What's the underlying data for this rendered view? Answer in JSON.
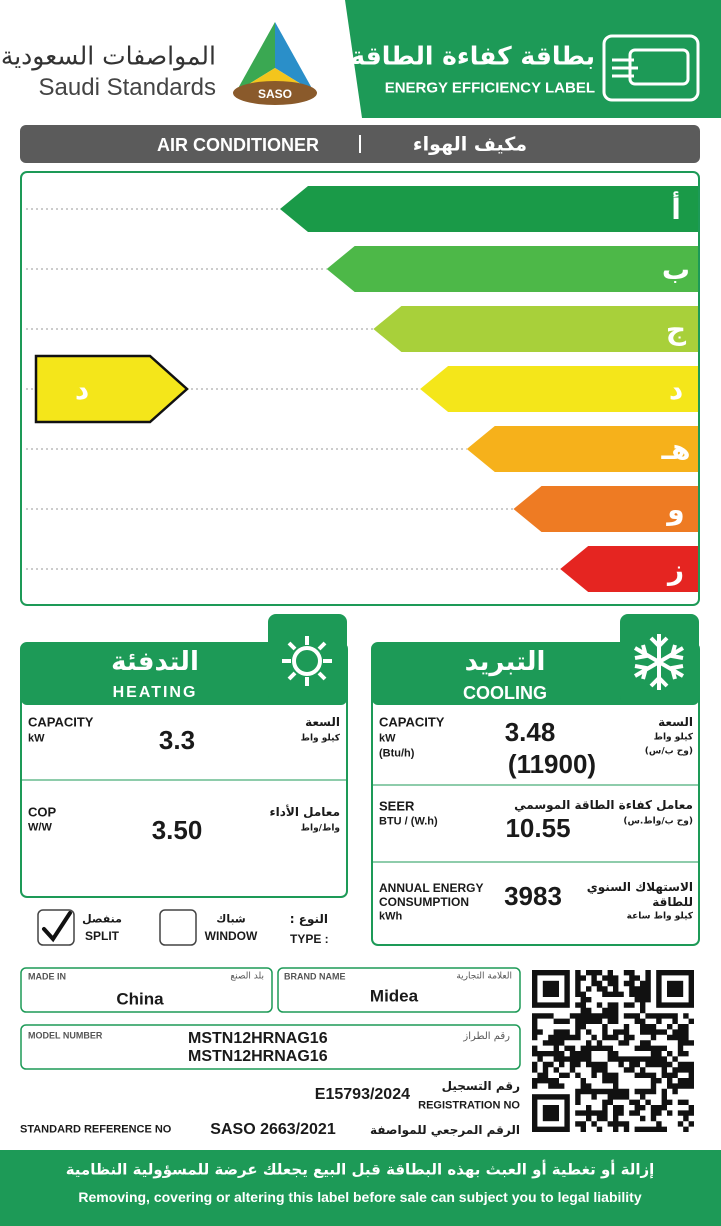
{
  "header": {
    "logo_ar": "المواصفات السعودية",
    "logo_en": "Saudi Standards",
    "logo_badge": "SASO",
    "title_ar": "بطاقة كفاءة الطاقة",
    "title_en": "ENERGY EFFICIENCY LABEL"
  },
  "product": {
    "en": "AIR CONDITIONER",
    "ar": "مكيف الهواء"
  },
  "scale": {
    "classes": [
      {
        "label": "أ",
        "color": "#1a9a48"
      },
      {
        "label": "ب",
        "color": "#4db848"
      },
      {
        "label": "ج",
        "color": "#a8d03a"
      },
      {
        "label": "د",
        "color": "#f4e61a"
      },
      {
        "label": "هـ",
        "color": "#f6b11b"
      },
      {
        "label": "و",
        "color": "#ee7b23"
      },
      {
        "label": "ز",
        "color": "#e52521"
      }
    ],
    "rating": "د"
  },
  "heating": {
    "title_ar": "التدفئة",
    "title_en": "HEATING",
    "capacity": {
      "label_en": "CAPACITY",
      "unit_en": "kW",
      "label_ar": "السعة",
      "unit_ar": "كيلو واط",
      "value": "3.3"
    },
    "cop": {
      "label_en": "COP",
      "unit_en": "W/W",
      "label_ar": "معامل الأداء",
      "unit_ar": "واط/واط",
      "value": "3.50"
    }
  },
  "cooling": {
    "title_ar": "التبريد",
    "title_en": "COOLING",
    "capacity": {
      "label_en": "CAPACITY",
      "unit_en": "kW",
      "unit2_en": "(Btu/h)",
      "label_ar": "السعة",
      "unit_ar": "كيلو واط",
      "unit2_ar": "(وح ب/س)",
      "value": "3.48",
      "value2": "(11900)"
    },
    "seer": {
      "label_en": "SEER",
      "unit_en": "BTU / (W.h)",
      "label_ar": "معامل كفاءة الطاقة الموسمي",
      "unit_ar": "(وح ب/واط.س)",
      "value": "10.55"
    },
    "annual": {
      "label_en": [
        "ANNUAL ENERGY",
        "CONSUMPTION"
      ],
      "unit_en": "kWh",
      "label_ar": [
        "الاستهلاك السنوي",
        "للطاقة"
      ],
      "unit_ar": "كيلو واط ساعة",
      "value": "3983"
    }
  },
  "type": {
    "label_ar": "النوع :",
    "label_en": "TYPE :",
    "split": {
      "ar": "منفصل",
      "en": "SPLIT",
      "checked": true
    },
    "window": {
      "ar": "شباك",
      "en": "WINDOW",
      "checked": false
    }
  },
  "made_in": {
    "label_en": "MADE IN",
    "label_ar": "بلد الصنع",
    "value": "China"
  },
  "brand": {
    "label_en": "BRAND NAME",
    "label_ar": "العلامة التجارية",
    "value": "Midea"
  },
  "model": {
    "label_en": "MODEL NUMBER",
    "label_ar": "رقم الطراز",
    "values": [
      "MSTN12HRNAG16",
      "MSTN12HRNAG16"
    ]
  },
  "registration": {
    "value": "E15793/2024",
    "label_ar": "رقم التسجيل",
    "label_en": "REGISTRATION NO"
  },
  "standard": {
    "label_en": "STANDARD REFERENCE NO",
    "value": "SASO 2663/2021",
    "label_ar": "الرقم المرجعي للمواصفة"
  },
  "footer": {
    "ar": "إزالة أو تغطية أو العبث بهذه البطاقة قبل البيع يجعلك عرضة للمسؤولية النظامية",
    "en": "Removing, covering or altering this label before sale can subject you to legal liability"
  }
}
